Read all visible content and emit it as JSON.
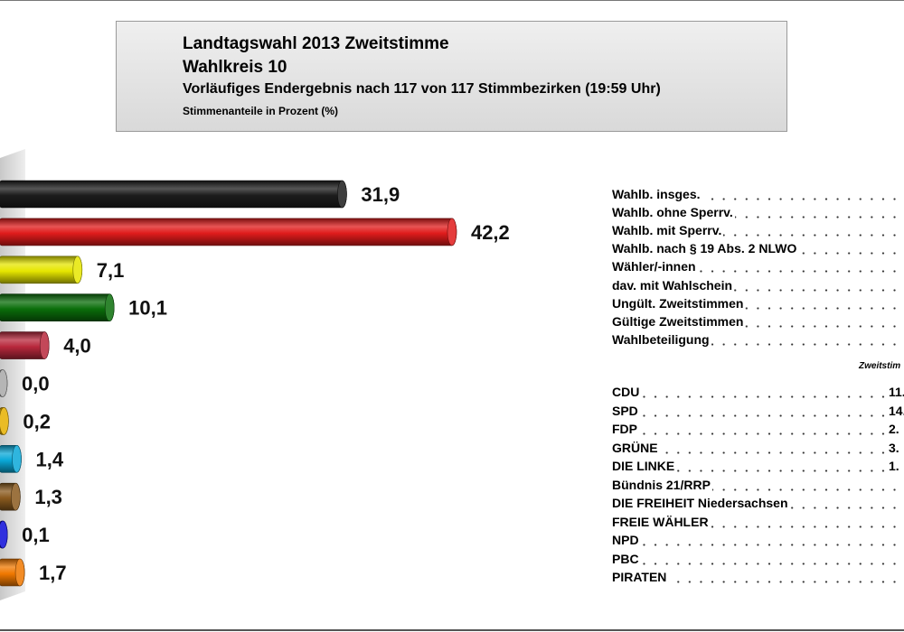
{
  "header": {
    "title": "Landtagswahl 2013 Zweitstimme",
    "subtitle": "Wahlkreis 10",
    "status": "Vorläufiges Endergebnis nach 117 von 117 Stimmbezirken (19:59 Uhr)",
    "unit": "Stimmenanteile in Prozent (%)"
  },
  "chart_data": {
    "type": "bar",
    "orientation": "horizontal",
    "title": "Landtagswahl 2013 Zweitstimme",
    "ylabel": "Stimmenanteile in Prozent (%)",
    "xlim": [
      0,
      50
    ],
    "grid": false,
    "legend": "none",
    "categories": [
      "CDU",
      "SPD",
      "FDP",
      "GRÜNE",
      "DIE LINKE",
      "Bündnis 21/RRP",
      "DIE FREIHEIT Niedersachsen",
      "FREIE WÄHLER",
      "NPD",
      "PBC",
      "PIRATEN"
    ],
    "values": [
      31.9,
      42.2,
      7.1,
      10.1,
      4.0,
      0.0,
      0.2,
      1.4,
      1.3,
      0.1,
      1.7
    ],
    "value_labels": [
      "31,9",
      "42,2",
      "7,1",
      "10,1",
      "4,0",
      "0,0",
      "0,2",
      "1,4",
      "1,3",
      "0,1",
      "1,7"
    ],
    "colors": [
      "#1c1c1c",
      "#e01b1b",
      "#e6e600",
      "#0a6e0a",
      "#b8283c",
      "#a8a8a8",
      "#e6b000",
      "#0aa8d8",
      "#8a5a1e",
      "#0a0ad8",
      "#f07800"
    ]
  },
  "info": {
    "rows": [
      {
        "label": "Wahlb. insges.",
        "value": ""
      },
      {
        "label": "Wahlb. ohne Sperrv.",
        "value": ""
      },
      {
        "label": "Wahlb. mit Sperrv.",
        "value": ""
      },
      {
        "label": "Wahlb. nach § 19 Abs. 2 NLWO",
        "value": ""
      },
      {
        "label": "Wähler/-innen",
        "value": ""
      },
      {
        "label": "dav. mit Wahlschein",
        "value": ""
      },
      {
        "label": "Ungült. Zweitstimmen",
        "value": ""
      },
      {
        "label": "Gültige Zweitstimmen",
        "value": ""
      },
      {
        "label": "Wahlbeteiligung",
        "value": ""
      }
    ],
    "column_header": "Zweitstim",
    "party_rows": [
      {
        "label": "CDU",
        "value": "11."
      },
      {
        "label": "SPD",
        "value": "14."
      },
      {
        "label": "FDP",
        "value": "2."
      },
      {
        "label": "GRÜNE",
        "value": "3."
      },
      {
        "label": "DIE LINKE",
        "value": "1."
      },
      {
        "label": "Bündnis 21/RRP",
        "value": ""
      },
      {
        "label": "DIE FREIHEIT Niedersachsen",
        "value": ""
      },
      {
        "label": "FREIE WÄHLER",
        "value": ""
      },
      {
        "label": "NPD",
        "value": ""
      },
      {
        "label": "PBC",
        "value": ""
      },
      {
        "label": "PIRATEN",
        "value": ""
      }
    ]
  }
}
